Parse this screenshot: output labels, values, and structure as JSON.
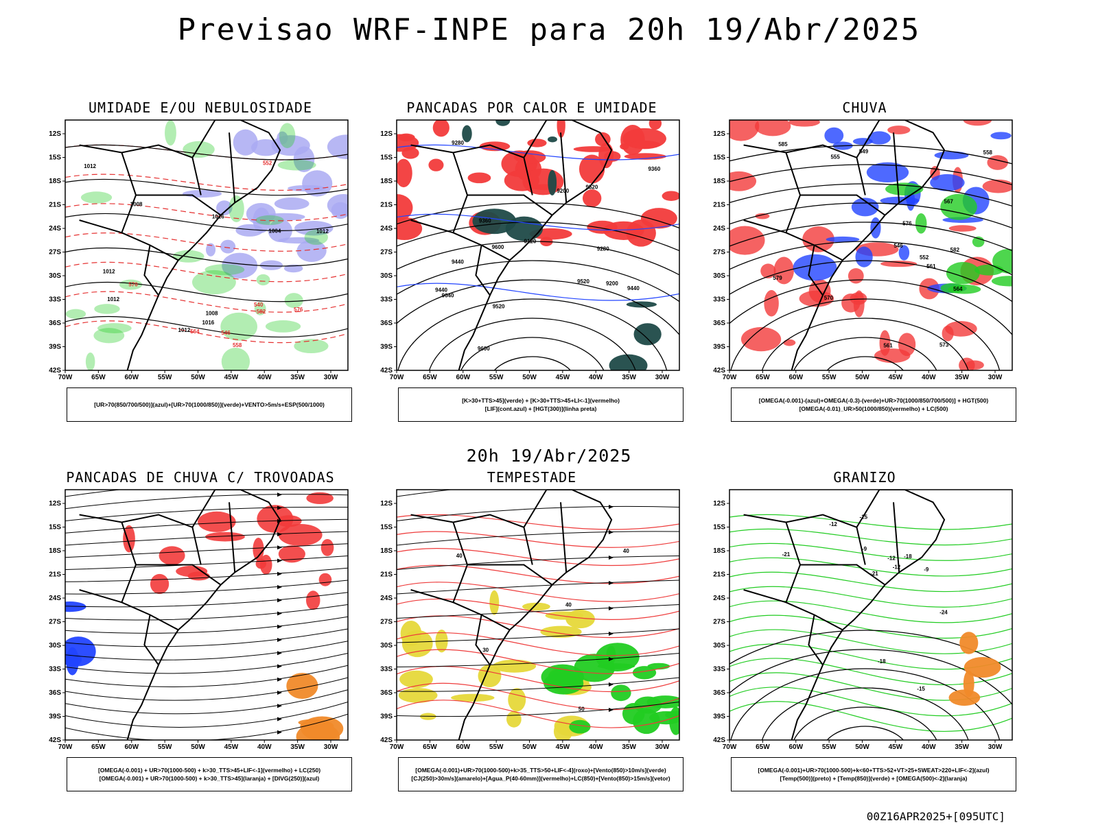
{
  "header": {
    "title": "Previsao WRF-INPE  para 20h 19/Abr/2025"
  },
  "mid_title": "20h 19/Abr/2025",
  "footer": "00Z16APR2025+[095UTC]",
  "axes": {
    "lat_labels": [
      "12S",
      "15S",
      "18S",
      "21S",
      "24S",
      "27S",
      "30S",
      "33S",
      "36S",
      "39S",
      "42S"
    ],
    "lon_labels": [
      "70W",
      "65W",
      "60W",
      "55W",
      "50W",
      "45W",
      "40W",
      "35W",
      "30W"
    ]
  },
  "colors": {
    "red": "#f23b3b",
    "green": "#22cc22",
    "blue": "#2244ff",
    "lavender": "#aaaaf2",
    "darkteal": "#1f4a48",
    "yellow": "#e6d83a",
    "orange": "#f08a2a"
  },
  "panels": [
    {
      "title": "UMIDADE E/OU NEBULOSIDADE",
      "legend": [
        "[UR>70(850/700/500)](azul)+[UR>70(1000/850)](verde)+VENTO>5m/s+ESP(500/1000)"
      ],
      "contour_labels": [
        "1012",
        "1008",
        "1016",
        "1012",
        "1012",
        "1012",
        "1016",
        "1012",
        "1004",
        "1008",
        "570",
        "576",
        "564",
        "558",
        "552",
        "546",
        "540",
        "582"
      ]
    },
    {
      "title": "PANCADAS POR CALOR E UMIDADE",
      "legend": [
        "[K>30+TTS>45](verde) + [K>30+TTS>45+LI<-1](vermelho)",
        "[LIF](cont.azul) + [HGT(300)](linha preta)"
      ],
      "contour_labels": [
        "9600",
        "9520",
        "9600",
        "9520",
        "9440",
        "9520",
        "9440",
        "9360",
        "9280",
        "9440",
        "9360",
        "9200",
        "9120",
        "9040",
        "9280",
        "9200"
      ]
    },
    {
      "title": "CHUVA",
      "legend": [
        "[OMEGA(-0.001)-(azul)+OMEGA(-0.3)-(verde)+UR>70(1000/850/700/500)] + HGT(500)",
        "[OMEGA(-0.01)_UR>50(1000/850)(vermelho) + LC(500)"
      ],
      "contour_labels": [
        "585",
        "582",
        "579",
        "576",
        "573",
        "570",
        "567",
        "564",
        "561",
        "558",
        "555",
        "552",
        "549",
        "546",
        "561"
      ]
    },
    {
      "title": "PANCADAS DE CHUVA C/ TROVOADAS",
      "legend": [
        "[OMEGA(-0.001) + UR>70(1000-500) + k>30_TTS>45+LIF<-1](vermelho) + LC(250)",
        "[OMEGA(-0.001) + UR>70(1000-500) + k>30_TTS>45](laranja) + [DIVG(250)](azul)"
      ],
      "contour_labels": []
    },
    {
      "title": "TEMPESTADE",
      "legend": [
        "[OMEGA(-0.001)+UR>70(1000-500)+k>35_TTS>50+LIF<-4](roxo)+[Vento(850)>10m/s](verde)",
        "[CJ(250)>30m/s](amarelo)+[Agua_P(40-60mm)](vermelho)+LC(850)+[Vento(850)>15m/s](vetor)"
      ],
      "contour_labels": [
        "40",
        "40",
        "50",
        "30",
        "40"
      ]
    },
    {
      "title": "GRANIZO",
      "legend": [
        "[OMEGA(-0.001)+UR>70(1000-500)+k<60+TTS>52+VT>25+SWEAT>220+LIF<-2](azul)",
        "[Temp(500)](preto) + [Temp(850)](verde) + [OMEGA(500)<-2](laranja)"
      ],
      "contour_labels": [
        "-9",
        "-12",
        "-15",
        "-12",
        "-18",
        "-21",
        "-24",
        "-21",
        "-15",
        "-18",
        "-12",
        "-9"
      ]
    }
  ]
}
